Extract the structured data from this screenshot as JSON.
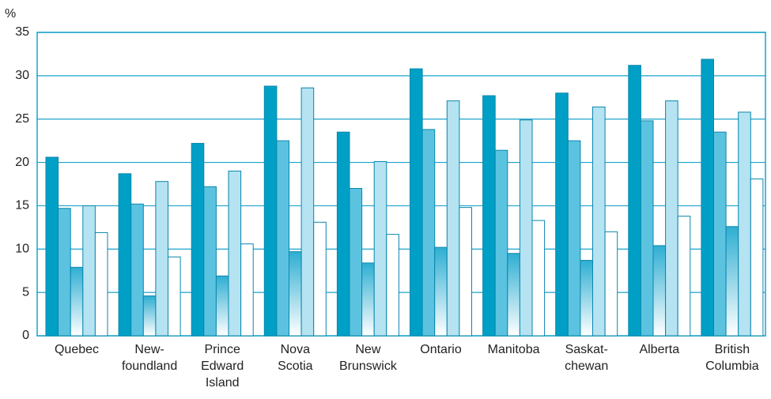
{
  "chart_data": {
    "type": "bar",
    "ylabel": "%",
    "categories": [
      "Quebec",
      "New-\nfoundland",
      "Prince\nEdward\nIsland",
      "Nova\nScotia",
      "New\nBrunswick",
      "Ontario",
      "Manitoba",
      "Saskat-\nchewan",
      "Alberta",
      "British\nColumbia"
    ],
    "series": [
      {
        "color": "#00a0c6",
        "values": [
          20.6,
          18.7,
          22.2,
          28.8,
          23.5,
          30.8,
          27.7,
          28.0,
          31.2,
          31.9
        ]
      },
      {
        "color": "#5bc3e0",
        "values": [
          14.7,
          15.2,
          17.2,
          22.5,
          17.0,
          23.8,
          21.4,
          22.5,
          24.8,
          23.5
        ]
      },
      {
        "color": "#2eaed2",
        "gradient": true,
        "values": [
          7.9,
          4.6,
          6.9,
          9.7,
          8.4,
          10.2,
          9.5,
          8.7,
          10.4,
          12.6
        ]
      },
      {
        "color": "#b5e3f1",
        "values": [
          15.0,
          17.8,
          19.0,
          28.6,
          20.1,
          27.1,
          24.9,
          26.4,
          27.1,
          25.8
        ]
      },
      {
        "color": "#ffffff",
        "values": [
          11.9,
          9.1,
          10.6,
          13.1,
          11.7,
          14.8,
          13.3,
          12.0,
          13.8,
          18.1
        ]
      }
    ],
    "ylim": [
      0,
      35
    ],
    "yticks": [
      0,
      5,
      10,
      15,
      20,
      25,
      30,
      35
    ],
    "grid": true
  }
}
